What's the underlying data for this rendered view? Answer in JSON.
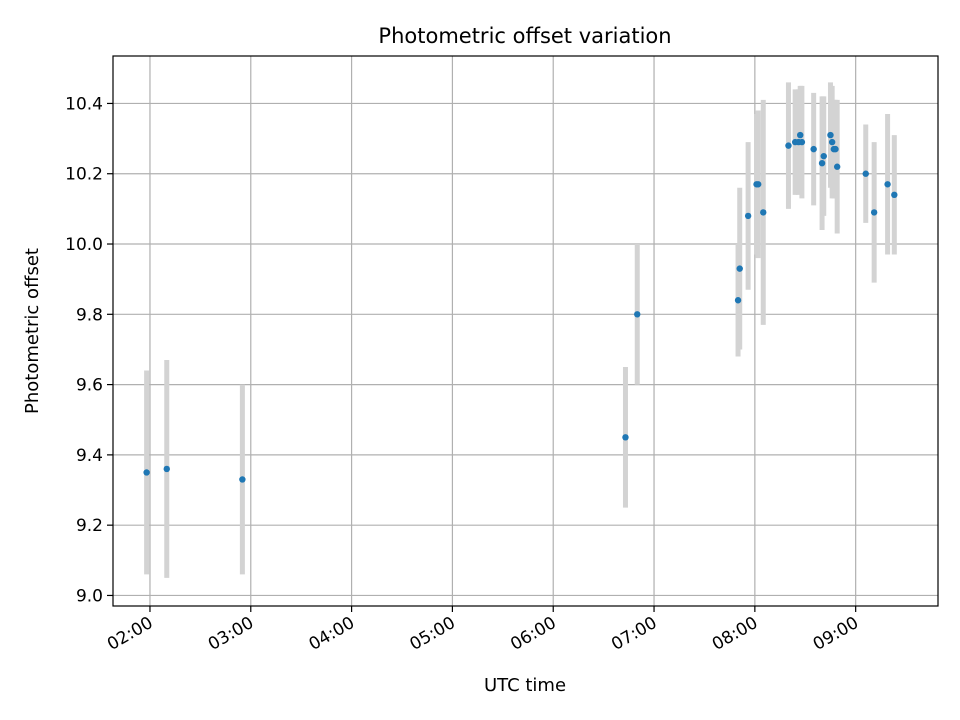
{
  "chart_data": {
    "type": "scatter",
    "title": "Photometric offset variation",
    "xlabel": "UTC time",
    "ylabel": "Photometric offset",
    "x_unit": "UTC time (HH:MM)",
    "xlim": [
      "01:38",
      "09:49"
    ],
    "ylim": [
      8.97,
      10.535
    ],
    "x_ticks": [
      "02:00",
      "03:00",
      "04:00",
      "05:00",
      "06:00",
      "07:00",
      "08:00",
      "09:00"
    ],
    "y_ticks": [
      "9.0",
      "9.2",
      "9.4",
      "9.6",
      "9.8",
      "10.0",
      "10.2",
      "10.4"
    ],
    "grid": true,
    "marker_color": "#1f77b4",
    "errorbar_color": "#d3d3d3",
    "series": [
      {
        "points": [
          {
            "x": "01:58",
            "y": 9.35,
            "err": 0.29
          },
          {
            "x": "02:10",
            "y": 9.36,
            "err": 0.31
          },
          {
            "x": "02:55",
            "y": 9.33,
            "err": 0.27
          },
          {
            "x": "06:43",
            "y": 9.45,
            "err": 0.2
          },
          {
            "x": "06:50",
            "y": 9.8,
            "err": 0.2
          },
          {
            "x": "07:50",
            "y": 9.84,
            "err": 0.16
          },
          {
            "x": "07:51",
            "y": 9.93,
            "err": 0.23
          },
          {
            "x": "07:56",
            "y": 10.08,
            "err": 0.21
          },
          {
            "x": "08:01",
            "y": 10.17,
            "err": 0.2
          },
          {
            "x": "08:02",
            "y": 10.17,
            "err": 0.21
          },
          {
            "x": "08:05",
            "y": 10.09,
            "err": 0.32
          },
          {
            "x": "08:20",
            "y": 10.28,
            "err": 0.18
          },
          {
            "x": "08:24",
            "y": 10.29,
            "err": 0.15
          },
          {
            "x": "08:26",
            "y": 10.29,
            "err": 0.15
          },
          {
            "x": "08:27",
            "y": 10.31,
            "err": 0.14
          },
          {
            "x": "08:28",
            "y": 10.29,
            "err": 0.16
          },
          {
            "x": "08:35",
            "y": 10.27,
            "err": 0.16
          },
          {
            "x": "08:40",
            "y": 10.23,
            "err": 0.19
          },
          {
            "x": "08:41",
            "y": 10.25,
            "err": 0.17
          },
          {
            "x": "08:45",
            "y": 10.31,
            "err": 0.15
          },
          {
            "x": "08:46",
            "y": 10.29,
            "err": 0.16
          },
          {
            "x": "08:47",
            "y": 10.27,
            "err": 0.14
          },
          {
            "x": "08:48",
            "y": 10.27,
            "err": 0.14
          },
          {
            "x": "08:49",
            "y": 10.22,
            "err": 0.19
          },
          {
            "x": "09:06",
            "y": 10.2,
            "err": 0.14
          },
          {
            "x": "09:11",
            "y": 10.09,
            "err": 0.2
          },
          {
            "x": "09:19",
            "y": 10.17,
            "err": 0.2
          },
          {
            "x": "09:23",
            "y": 10.14,
            "err": 0.17
          }
        ]
      }
    ]
  }
}
